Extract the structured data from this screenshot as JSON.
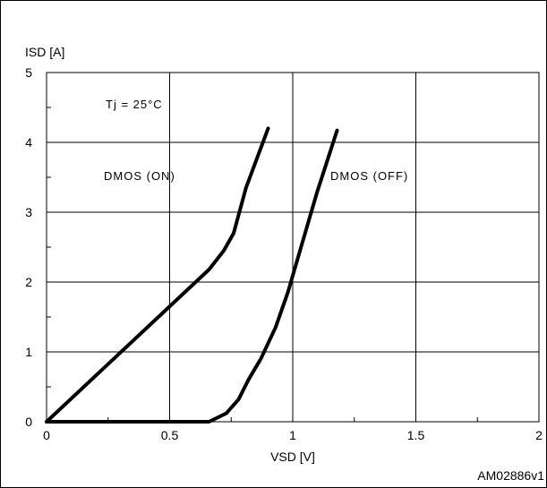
{
  "chart_data": {
    "type": "line",
    "title": "",
    "xlabel": "VSD [V]",
    "ylabel": "ISD [A]",
    "xlim": [
      0,
      2
    ],
    "ylim": [
      0,
      5
    ],
    "x_ticks": [
      "0",
      "0.5",
      "1",
      "1.5",
      "2"
    ],
    "y_ticks": [
      "0",
      "1",
      "2",
      "3",
      "4",
      "5"
    ],
    "grid": true,
    "series": [
      {
        "name": "DMOS (ON)",
        "points": [
          [
            0,
            0
          ],
          [
            0.66,
            2.18
          ],
          [
            0.72,
            2.45
          ],
          [
            0.76,
            2.7
          ],
          [
            0.81,
            3.35
          ],
          [
            0.9,
            4.2
          ]
        ]
      },
      {
        "name": "DMOS (OFF)",
        "points": [
          [
            0,
            0
          ],
          [
            0.66,
            0
          ],
          [
            0.73,
            0.12
          ],
          [
            0.78,
            0.32
          ],
          [
            0.82,
            0.6
          ],
          [
            0.87,
            0.9
          ],
          [
            0.93,
            1.35
          ],
          [
            0.98,
            1.85
          ],
          [
            1.05,
            2.7
          ],
          [
            1.1,
            3.3
          ],
          [
            1.18,
            4.17
          ]
        ]
      }
    ],
    "annotations": {
      "condition": "Tj = 25°C",
      "on_label": "DMOS (ON)",
      "off_label": "DMOS (OFF)",
      "figure_id": "AM02886v1"
    }
  }
}
